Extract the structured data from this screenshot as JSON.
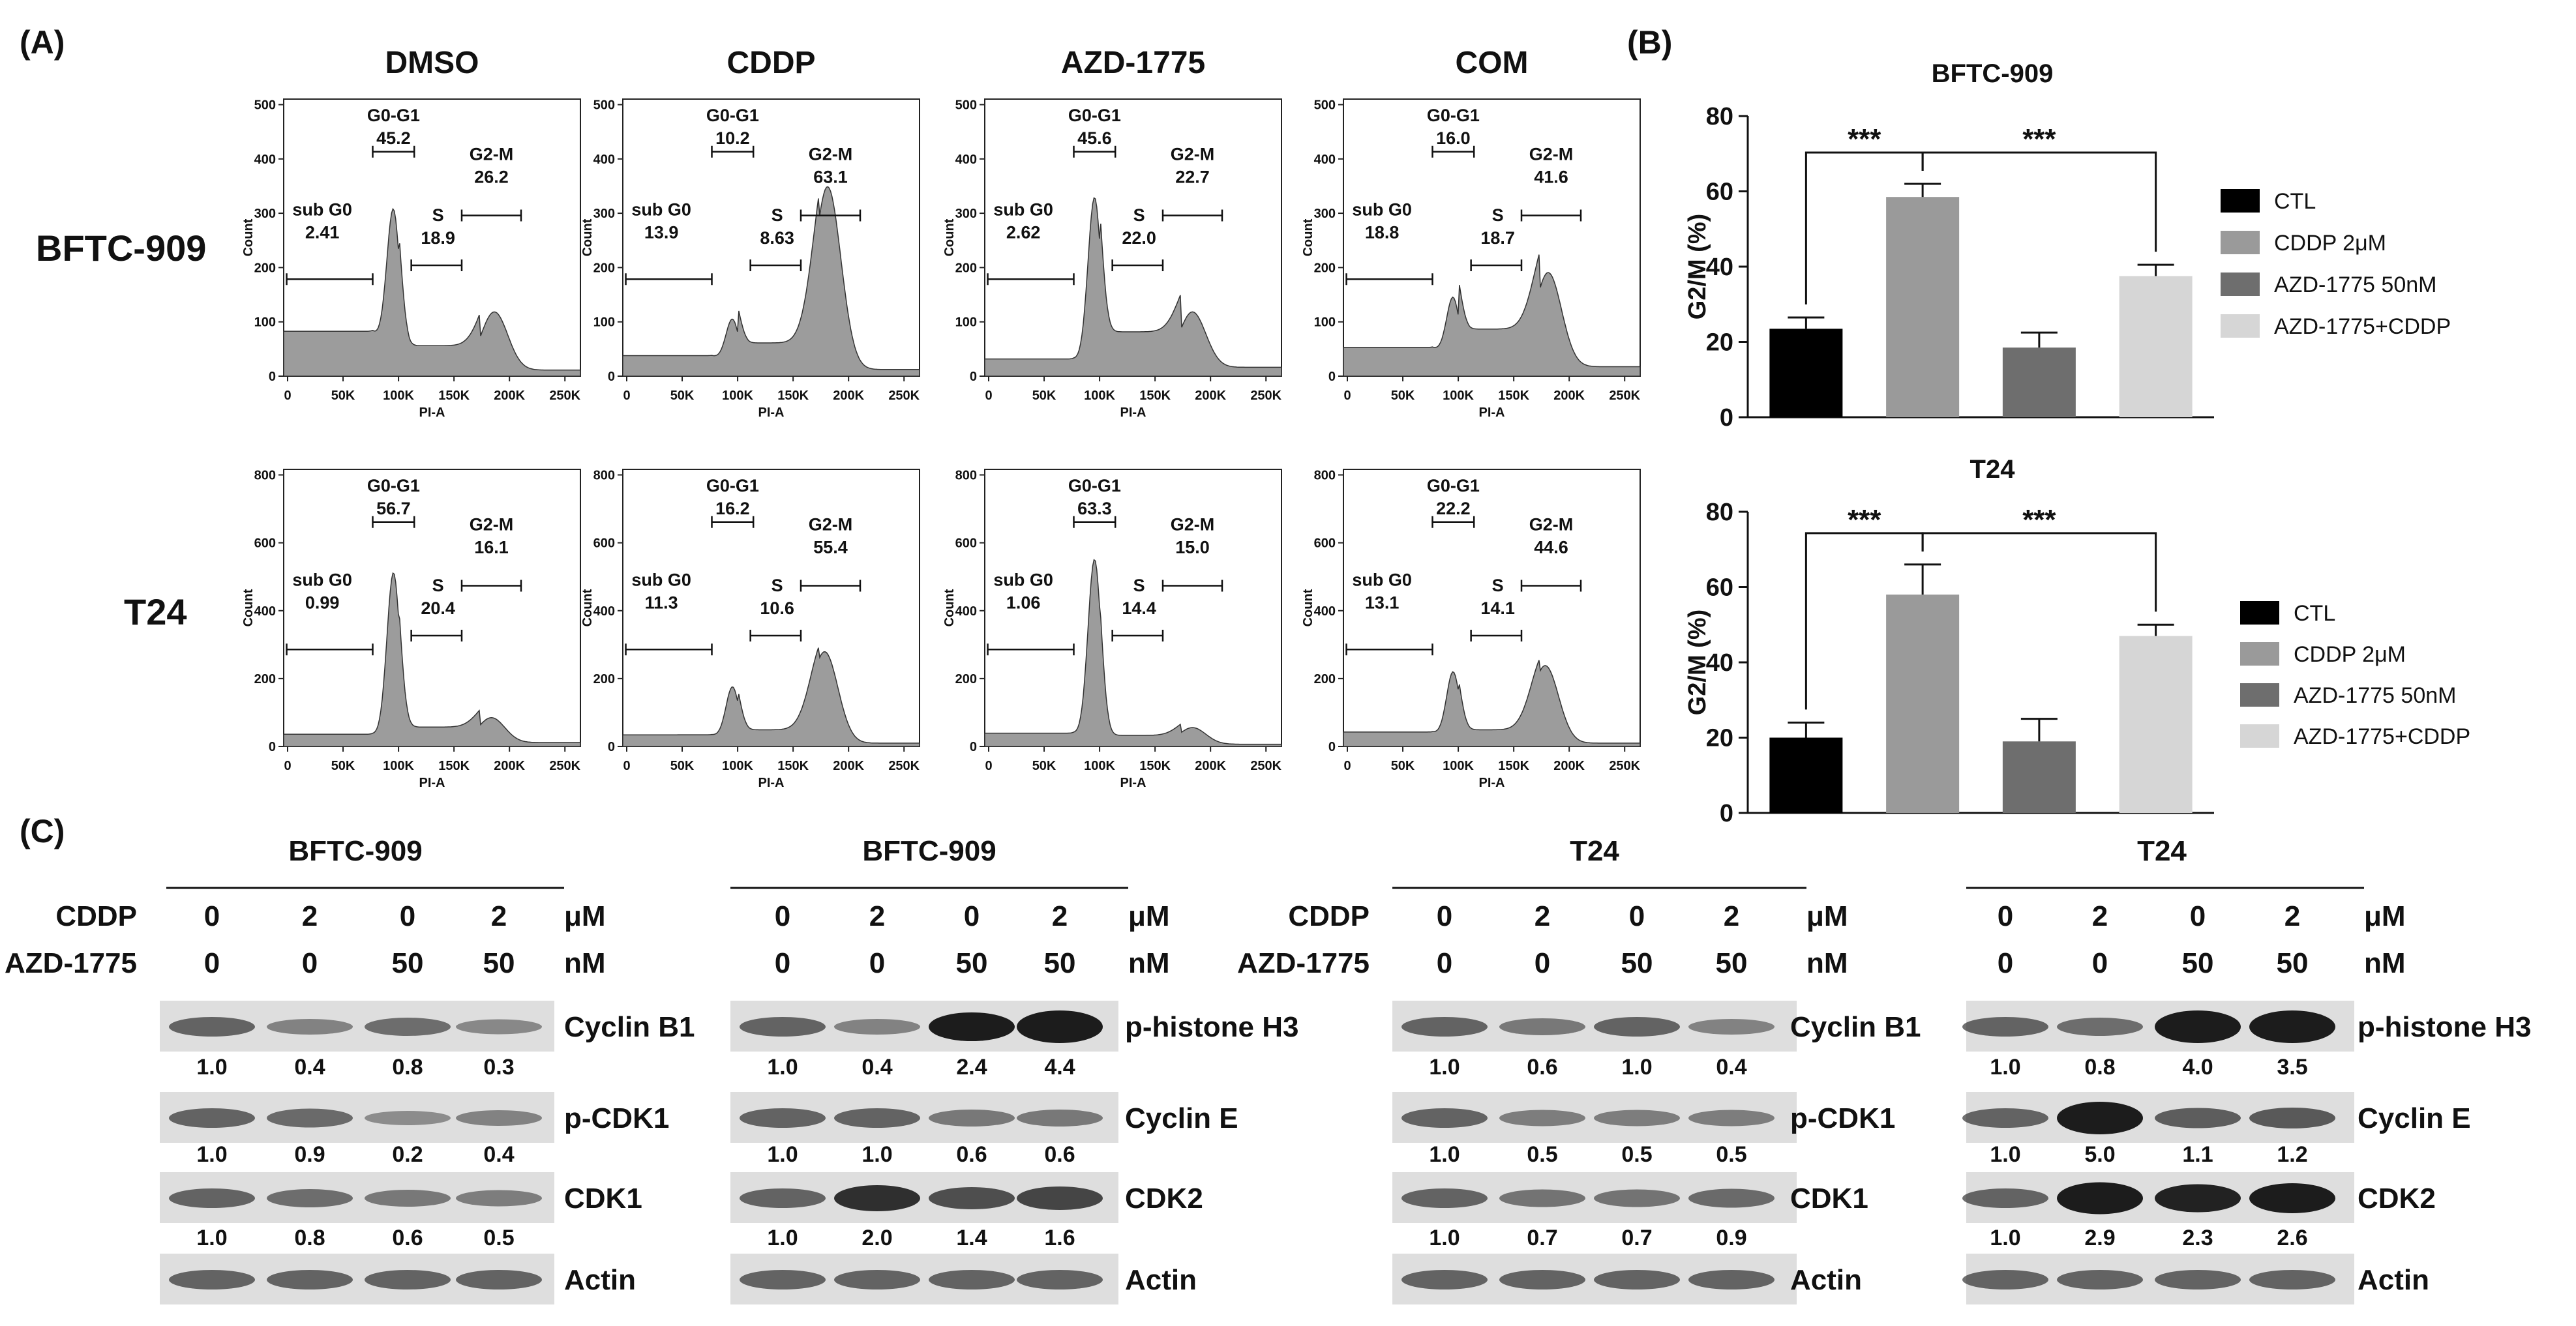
{
  "panel_labels": {
    "a": "(A)",
    "b": "(B)",
    "c": "(C)"
  },
  "flow": {
    "col_titles": [
      "DMSO",
      "CDDP",
      "AZD-1775",
      "COM"
    ],
    "row_titles": [
      "BFTC-909",
      "T24"
    ],
    "y_label": "Count",
    "x_label": "PI-A",
    "x_ticks": [
      "0",
      "50K",
      "100K",
      "150K",
      "200K",
      "250K"
    ],
    "y_ticks": [
      [
        "0",
        "100",
        "200",
        "300",
        "400",
        "500"
      ],
      [
        "0",
        "200",
        "400",
        "600",
        "800"
      ]
    ],
    "gate_names": [
      "sub G0",
      "G0-G1",
      "S",
      "G2-M"
    ],
    "panels": [
      [
        {
          "subG0": "2.41",
          "G0G1": "45.2",
          "S": "18.9",
          "G2M": "26.2"
        },
        {
          "subG0": "13.9",
          "G0G1": "10.2",
          "S": "8.63",
          "G2M": "63.1"
        },
        {
          "subG0": "2.62",
          "G0G1": "45.6",
          "S": "22.0",
          "G2M": "22.7"
        },
        {
          "subG0": "18.8",
          "G0G1": "16.0",
          "S": "18.7",
          "G2M": "41.6"
        }
      ],
      [
        {
          "subG0": "0.99",
          "G0G1": "56.7",
          "S": "20.4",
          "G2M": "16.1"
        },
        {
          "subG0": "11.3",
          "G0G1": "16.2",
          "S": "10.6",
          "G2M": "55.4"
        },
        {
          "subG0": "1.06",
          "G0G1": "63.3",
          "S": "14.4",
          "G2M": "15.0"
        },
        {
          "subG0": "13.1",
          "G0G1": "22.2",
          "S": "14.1",
          "G2M": "44.6"
        }
      ]
    ]
  },
  "chart_data": [
    {
      "type": "bar",
      "title": "BFTC-909",
      "ylabel": "G2/M (%)",
      "ylim": [
        0,
        80
      ],
      "yticks": [
        "0",
        "20",
        "40",
        "60",
        "80"
      ],
      "categories": [
        "CTL",
        "CDDP 2μM",
        "AZD-1775 50nM",
        "AZD-1775+CDDP"
      ],
      "values": [
        23.5,
        58.5,
        18.5,
        37.5
      ],
      "errors": [
        3,
        3.5,
        4,
        3
      ],
      "colors": [
        "#000000",
        "#9a9a9a",
        "#6e6e6e",
        "#d6d6d6"
      ],
      "significance": [
        "***",
        "***"
      ]
    },
    {
      "type": "bar",
      "title": "T24",
      "ylabel": "G2/M (%)",
      "ylim": [
        0,
        80
      ],
      "yticks": [
        "0",
        "20",
        "40",
        "60",
        "80"
      ],
      "categories": [
        "CTL",
        "CDDP 2μM",
        "AZD-1775 50nM",
        "AZD-1775+CDDP"
      ],
      "values": [
        20,
        58,
        19,
        47
      ],
      "errors": [
        4,
        8,
        6,
        3
      ],
      "colors": [
        "#000000",
        "#9a9a9a",
        "#6e6e6e",
        "#d6d6d6"
      ],
      "significance": [
        "***",
        "***"
      ]
    }
  ],
  "western": {
    "cddp_label": "CDDP",
    "azd_label": "AZD-1775",
    "unit_um": "μM",
    "unit_nm": "nM",
    "cddp_values": [
      "0",
      "2",
      "0",
      "2"
    ],
    "azd_values": [
      "0",
      "0",
      "50",
      "50"
    ],
    "blots": [
      {
        "title": "BFTC-909",
        "show_labels": true,
        "proteins": [
          {
            "name": "Cyclin B1",
            "quant": [
              "1.0",
              "0.4",
              "0.8",
              "0.3"
            ]
          },
          {
            "name": "p-CDK1",
            "quant": [
              "1.0",
              "0.9",
              "0.2",
              "0.4"
            ]
          },
          {
            "name": "CDK1",
            "quant": [
              "1.0",
              "0.8",
              "0.6",
              "0.5"
            ]
          },
          {
            "name": "Actin",
            "quant": []
          }
        ]
      },
      {
        "title": "BFTC-909",
        "show_labels": false,
        "proteins": [
          {
            "name": "p-histone H3",
            "quant": [
              "1.0",
              "0.4",
              "2.4",
              "4.4"
            ]
          },
          {
            "name": "Cyclin E",
            "quant": [
              "1.0",
              "1.0",
              "0.6",
              "0.6"
            ]
          },
          {
            "name": "CDK2",
            "quant": [
              "1.0",
              "2.0",
              "1.4",
              "1.6"
            ]
          },
          {
            "name": "Actin",
            "quant": []
          }
        ]
      },
      {
        "title": "T24",
        "show_labels": true,
        "proteins": [
          {
            "name": "Cyclin B1",
            "quant": [
              "1.0",
              "0.6",
              "1.0",
              "0.4"
            ]
          },
          {
            "name": "p-CDK1",
            "quant": [
              "1.0",
              "0.5",
              "0.5",
              "0.5"
            ]
          },
          {
            "name": "CDK1",
            "quant": [
              "1.0",
              "0.7",
              "0.7",
              "0.9"
            ]
          },
          {
            "name": "Actin",
            "quant": []
          }
        ]
      },
      {
        "title": "T24",
        "show_labels": false,
        "proteins": [
          {
            "name": "p-histone H3",
            "quant": [
              "1.0",
              "0.8",
              "4.0",
              "3.5"
            ]
          },
          {
            "name": "Cyclin E",
            "quant": [
              "1.0",
              "5.0",
              "1.1",
              "1.2"
            ]
          },
          {
            "name": "CDK2",
            "quant": [
              "1.0",
              "2.9",
              "2.3",
              "2.6"
            ]
          },
          {
            "name": "Actin",
            "quant": []
          }
        ]
      }
    ]
  }
}
